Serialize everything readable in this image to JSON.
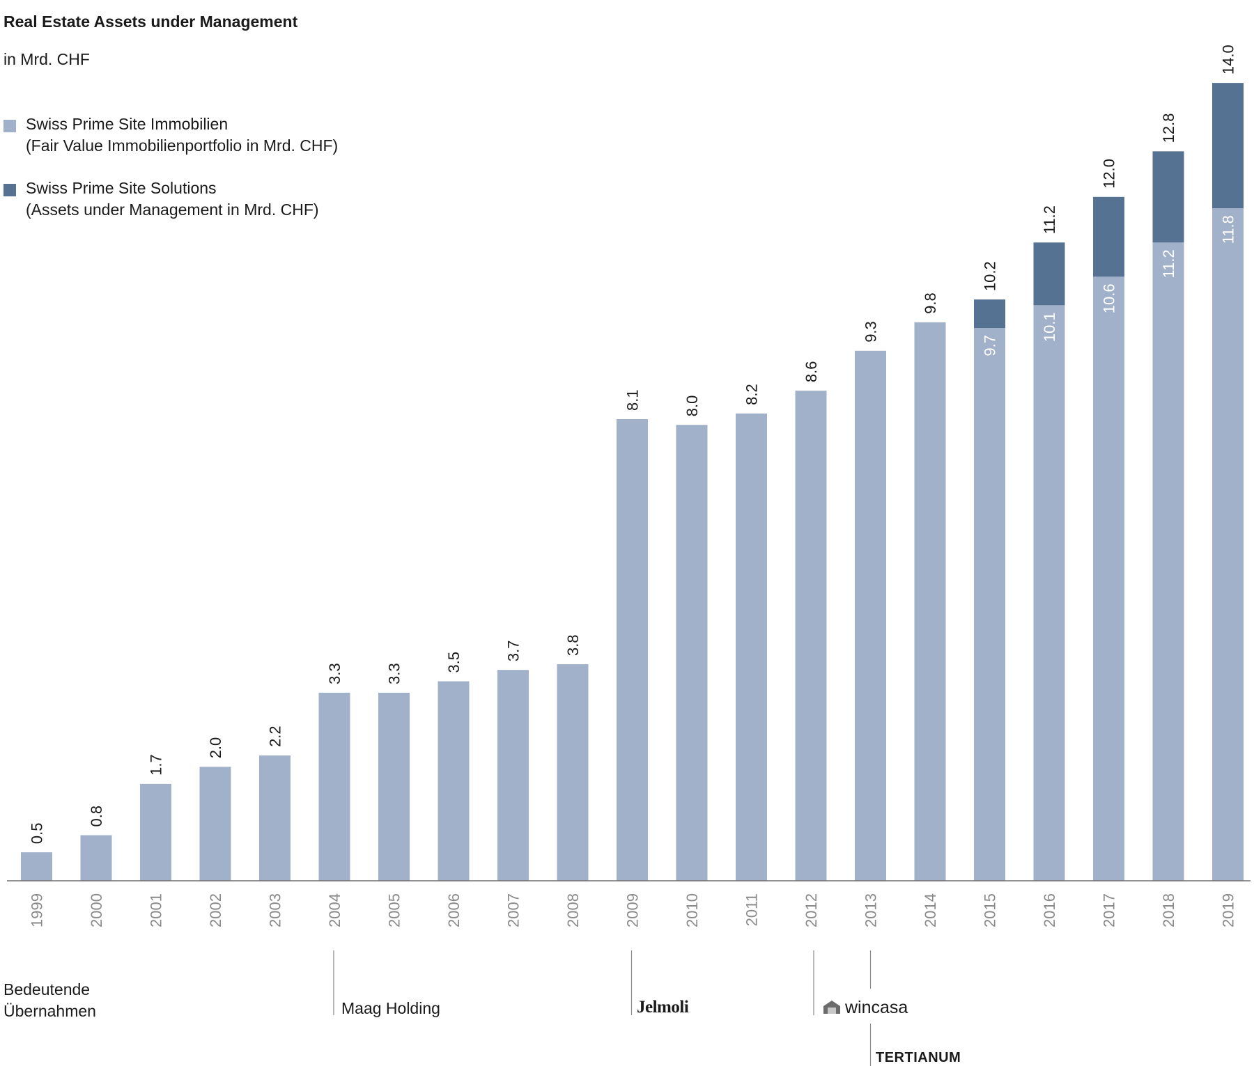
{
  "title": "Real Estate Assets under Management",
  "subtitle": "in Mrd. CHF",
  "legend": [
    {
      "line1": "Swiss Prime Site Immobilien",
      "line2": "(Fair Value Immobilienportfolio in Mrd. CHF)",
      "color": "#a1b1c9"
    },
    {
      "line1": "Swiss Prime Site Solutions",
      "line2": "(Assets under Management in Mrd. CHF)",
      "color": "#557293"
    }
  ],
  "acquisitions": {
    "heading_line1": "Bedeutende",
    "heading_line2": "Übernahmen",
    "items": [
      {
        "year": "2004",
        "label": "Maag Holding"
      },
      {
        "year": "2009",
        "label": "Jelmoli"
      },
      {
        "year": "2012",
        "label": "wincasa",
        "icon": "house-icon"
      },
      {
        "year": "2013",
        "label": "TERTIANUM"
      }
    ]
  },
  "chart_data": {
    "type": "bar",
    "stacked": true,
    "categories": [
      "1999",
      "2000",
      "2001",
      "2002",
      "2003",
      "2004",
      "2005",
      "2006",
      "2007",
      "2008",
      "2009",
      "2010",
      "2011",
      "2012",
      "2013",
      "2014",
      "2015",
      "2016",
      "2017",
      "2018",
      "2019"
    ],
    "series": [
      {
        "name": "Swiss Prime Site Immobilien",
        "color": "#a1b1c9",
        "values": [
          0.5,
          0.8,
          1.7,
          2.0,
          2.2,
          3.3,
          3.3,
          3.5,
          3.7,
          3.8,
          8.1,
          8.0,
          8.2,
          8.6,
          9.3,
          9.8,
          9.7,
          10.1,
          10.6,
          11.2,
          11.8
        ]
      },
      {
        "name": "Swiss Prime Site Solutions",
        "color": "#557293",
        "values": [
          0,
          0,
          0,
          0,
          0,
          0,
          0,
          0,
          0,
          0,
          0,
          0,
          0,
          0,
          0,
          0,
          0.5,
          1.1,
          1.4,
          1.6,
          2.2
        ]
      }
    ],
    "totals": [
      "0.5",
      "0.8",
      "1.7",
      "2.0",
      "2.2",
      "3.3",
      "3.3",
      "3.5",
      "3.7",
      "3.8",
      "8.1",
      "8.0",
      "8.2",
      "8.6",
      "9.3",
      "9.8",
      "10.2",
      "11.2",
      "12.0",
      "12.8",
      "14.0"
    ],
    "inner_labels": [
      "",
      "",
      "",
      "",
      "",
      "",
      "",
      "",
      "",
      "",
      "",
      "",
      "",
      "",
      "",
      "",
      "9.7",
      "10.1",
      "10.6",
      "11.2",
      "11.8"
    ],
    "ylim": [
      0,
      14.6
    ],
    "grid": false,
    "legend_position": "top-left"
  }
}
